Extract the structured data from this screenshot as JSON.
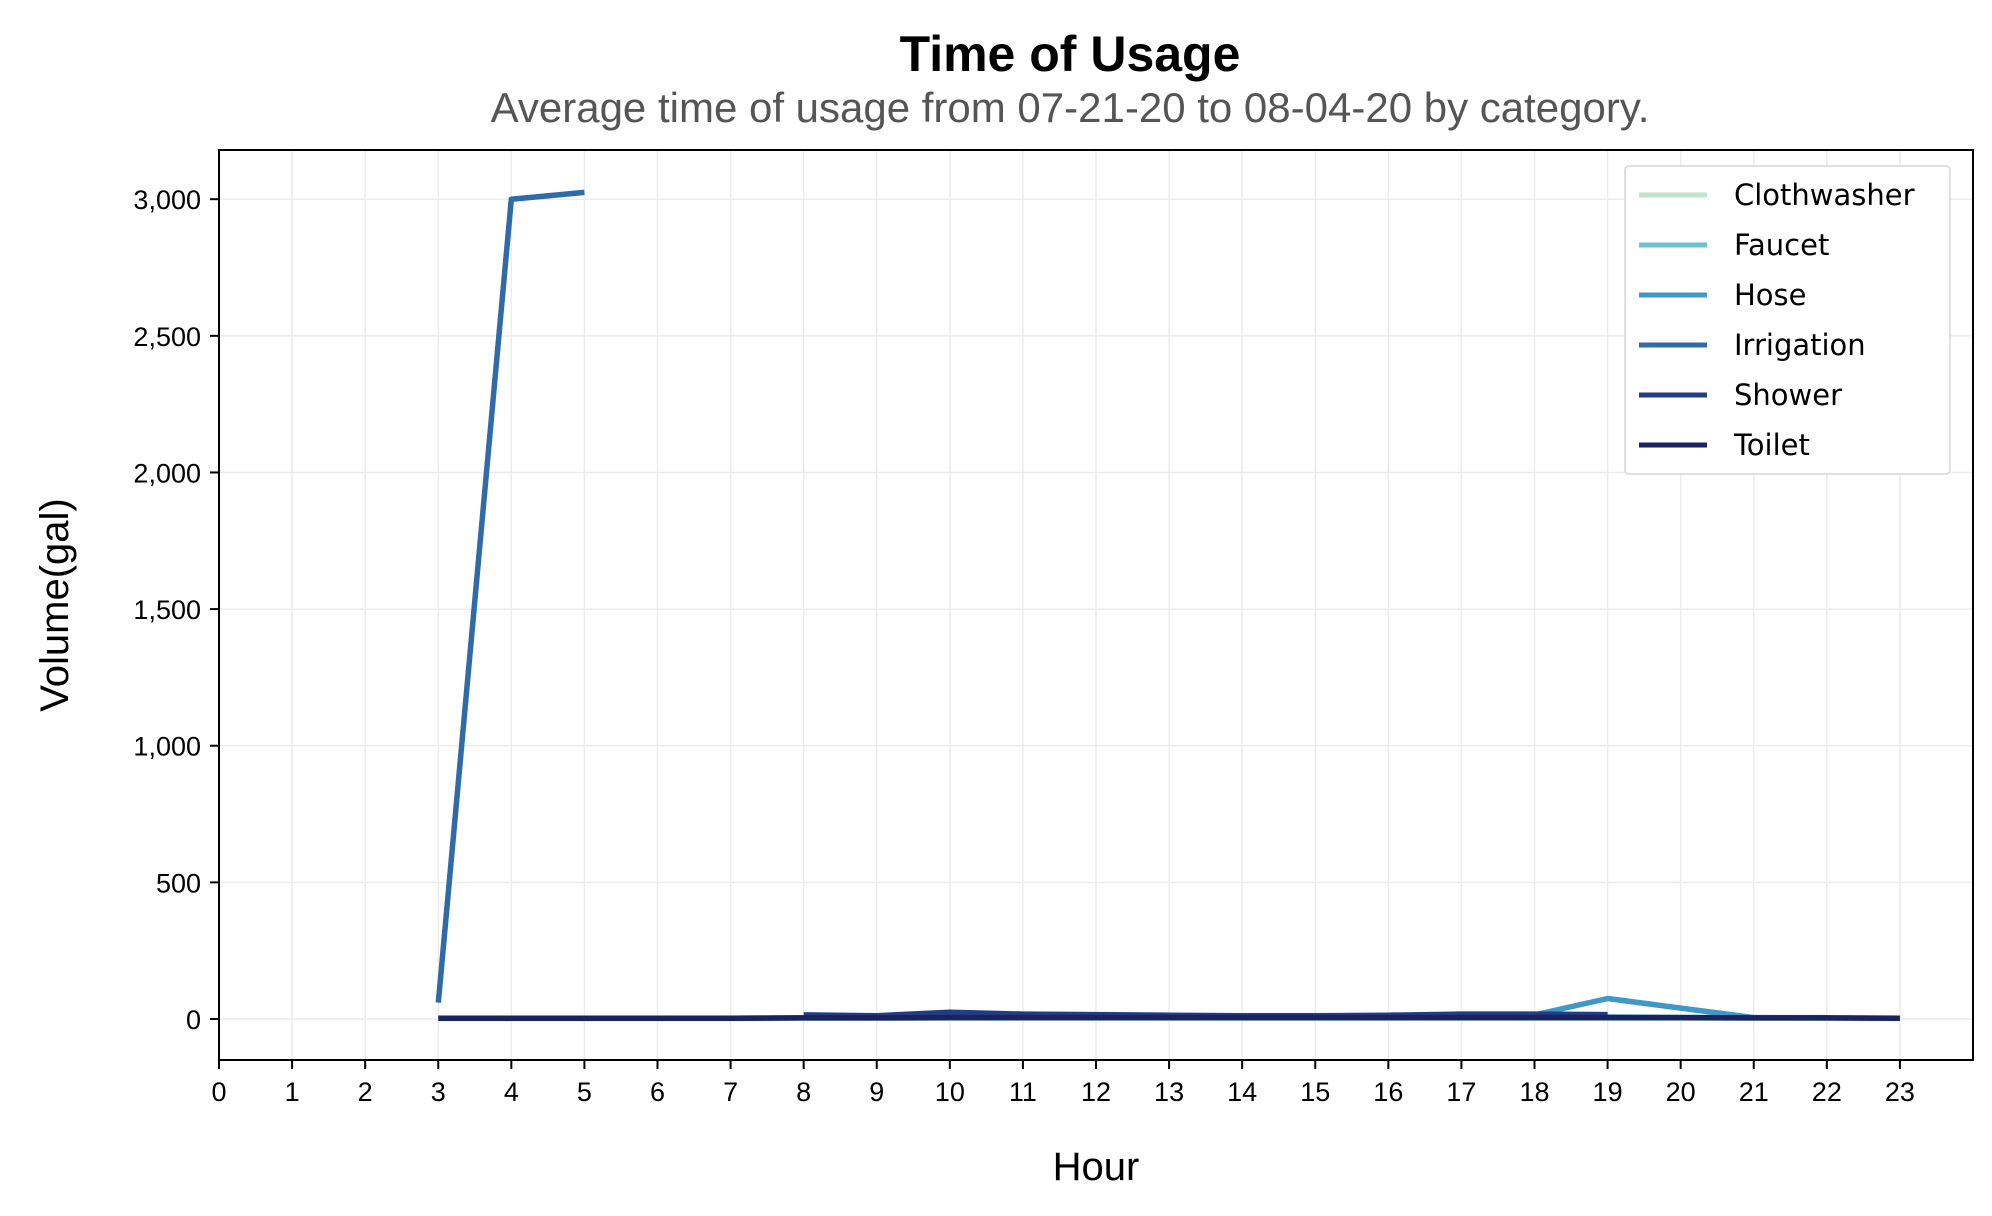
{
  "chart_data": {
    "type": "line",
    "title": "Time of Usage",
    "subtitle": "Average time of usage from 07-21-20 to 08-04-20 by category.",
    "xlabel": "Hour",
    "ylabel": "Volume(gal)",
    "xlim": [
      0,
      24
    ],
    "ylim": [
      -150,
      3180
    ],
    "x_ticks": [
      0,
      1,
      2,
      3,
      4,
      5,
      6,
      7,
      8,
      9,
      10,
      11,
      12,
      13,
      14,
      15,
      16,
      17,
      18,
      19,
      20,
      21,
      22,
      23
    ],
    "y_ticks": [
      0,
      500,
      1000,
      1500,
      2000,
      2500,
      3000
    ],
    "y_tick_labels": [
      "0",
      "500",
      "1,000",
      "1,500",
      "2,000",
      "2,500",
      "3,000"
    ],
    "grid": true,
    "legend_position": "top-right",
    "series": [
      {
        "name": "Clothwasher",
        "color": "#bfe3cc",
        "x": [
          3,
          4,
          5,
          6,
          7,
          8,
          9,
          10,
          11,
          12,
          13,
          14,
          15,
          16,
          17,
          18,
          19,
          20,
          21,
          22,
          23
        ],
        "y": [
          2,
          2,
          2,
          2,
          2,
          3,
          3,
          3,
          3,
          3,
          3,
          3,
          3,
          3,
          3,
          3,
          3,
          3,
          3,
          3,
          2
        ]
      },
      {
        "name": "Faucet",
        "color": "#6dc1d2",
        "x": [
          3,
          4,
          5,
          6,
          7,
          8,
          9,
          10,
          11,
          12,
          13,
          14,
          15,
          16,
          17,
          18,
          19,
          20,
          21,
          22,
          23
        ],
        "y": [
          3,
          3,
          3,
          3,
          3,
          5,
          5,
          6,
          5,
          5,
          5,
          5,
          5,
          5,
          6,
          6,
          8,
          6,
          5,
          4,
          3
        ]
      },
      {
        "name": "Hose",
        "color": "#4098c8",
        "x": [
          17,
          18,
          19,
          20,
          21,
          22
        ],
        "y": [
          15,
          15,
          75,
          40,
          5,
          5
        ]
      },
      {
        "name": "Irrigation",
        "color": "#306ba8",
        "x": [
          3,
          4,
          5
        ],
        "y": [
          60,
          3000,
          3025
        ]
      },
      {
        "name": "Shower",
        "color": "#223d86",
        "x": [
          8,
          9,
          10,
          11,
          12,
          13,
          14,
          15,
          16,
          17,
          18,
          19
        ],
        "y": [
          15,
          12,
          25,
          18,
          16,
          14,
          12,
          12,
          14,
          18,
          18,
          16
        ]
      },
      {
        "name": "Toilet",
        "color": "#1a2260",
        "x": [
          3,
          4,
          5,
          6,
          7,
          8,
          9,
          10,
          11,
          12,
          13,
          14,
          15,
          16,
          17,
          18,
          19,
          20,
          21,
          22,
          23
        ],
        "y": [
          3,
          3,
          3,
          3,
          3,
          4,
          4,
          5,
          5,
          5,
          5,
          5,
          5,
          5,
          5,
          5,
          5,
          5,
          4,
          4,
          3
        ]
      }
    ]
  }
}
